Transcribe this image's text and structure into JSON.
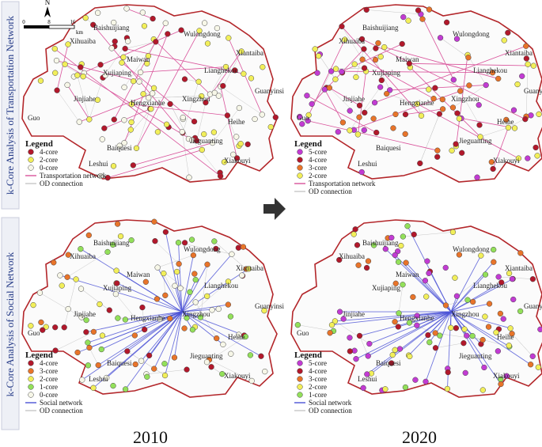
{
  "side_labels": [
    "k-Core Analysis of Transportation Network",
    "k-Core Analysis of Social Network"
  ],
  "scale": {
    "north": "N",
    "ticks": [
      "0",
      "8",
      "16"
    ],
    "unit": "km"
  },
  "place_names": [
    "Baishuijiang",
    "Xihuaiba",
    "Wulongdong",
    "Maiwan",
    "Xiantaiba",
    "Lianghekou",
    "Xujiaping",
    "Jinjiahe",
    "Hengxianhe",
    "Xingzhou",
    "Guo",
    "Heihe",
    "Jieguanting",
    "Baiquesi",
    "Leshui",
    "Xiakouyi",
    "Guanyinsi"
  ],
  "legends": [
    {
      "title": "Legend",
      "items": [
        {
          "label": "4-core",
          "color": "#b2182b"
        },
        {
          "label": "2-core",
          "color": "#f2ef5a"
        },
        {
          "label": "0-core",
          "color": "#f7f7e8"
        },
        {
          "label": "Transportation network",
          "line": "#d9539b"
        },
        {
          "label": "OD connection",
          "line": "#c8c8c8"
        }
      ]
    },
    {
      "title": "Legend",
      "items": [
        {
          "label": "5-core",
          "color": "#c23bd3"
        },
        {
          "label": "4-core",
          "color": "#b2182b"
        },
        {
          "label": "3-core",
          "color": "#e8742a"
        },
        {
          "label": "2-core",
          "color": "#f2ef5a"
        },
        {
          "label": "Transportation network",
          "line": "#d9539b"
        },
        {
          "label": "OD connection",
          "line": "#c8c8c8"
        }
      ]
    },
    {
      "title": "Legend",
      "items": [
        {
          "label": "4-core",
          "color": "#b2182b"
        },
        {
          "label": "3-core",
          "color": "#e8742a"
        },
        {
          "label": "2-core",
          "color": "#f2ef5a"
        },
        {
          "label": "1-core",
          "color": "#93e05a"
        },
        {
          "label": "0-core",
          "color": "#f7f7e8"
        },
        {
          "label": "Social network",
          "line": "#4b52d6"
        },
        {
          "label": "OD connection",
          "line": "#c8c8c8"
        }
      ]
    },
    {
      "title": "Legend",
      "items": [
        {
          "label": "5-core",
          "color": "#c23bd3"
        },
        {
          "label": "4-core",
          "color": "#b2182b"
        },
        {
          "label": "3-core",
          "color": "#e8742a"
        },
        {
          "label": "2-core",
          "color": "#f2ef5a"
        },
        {
          "label": "1-core",
          "color": "#93e05a"
        },
        {
          "label": "Social network",
          "line": "#4b52d6"
        },
        {
          "label": "OD connection",
          "line": "#c8c8c8"
        }
      ]
    }
  ],
  "years": [
    "2010",
    "2020"
  ]
}
